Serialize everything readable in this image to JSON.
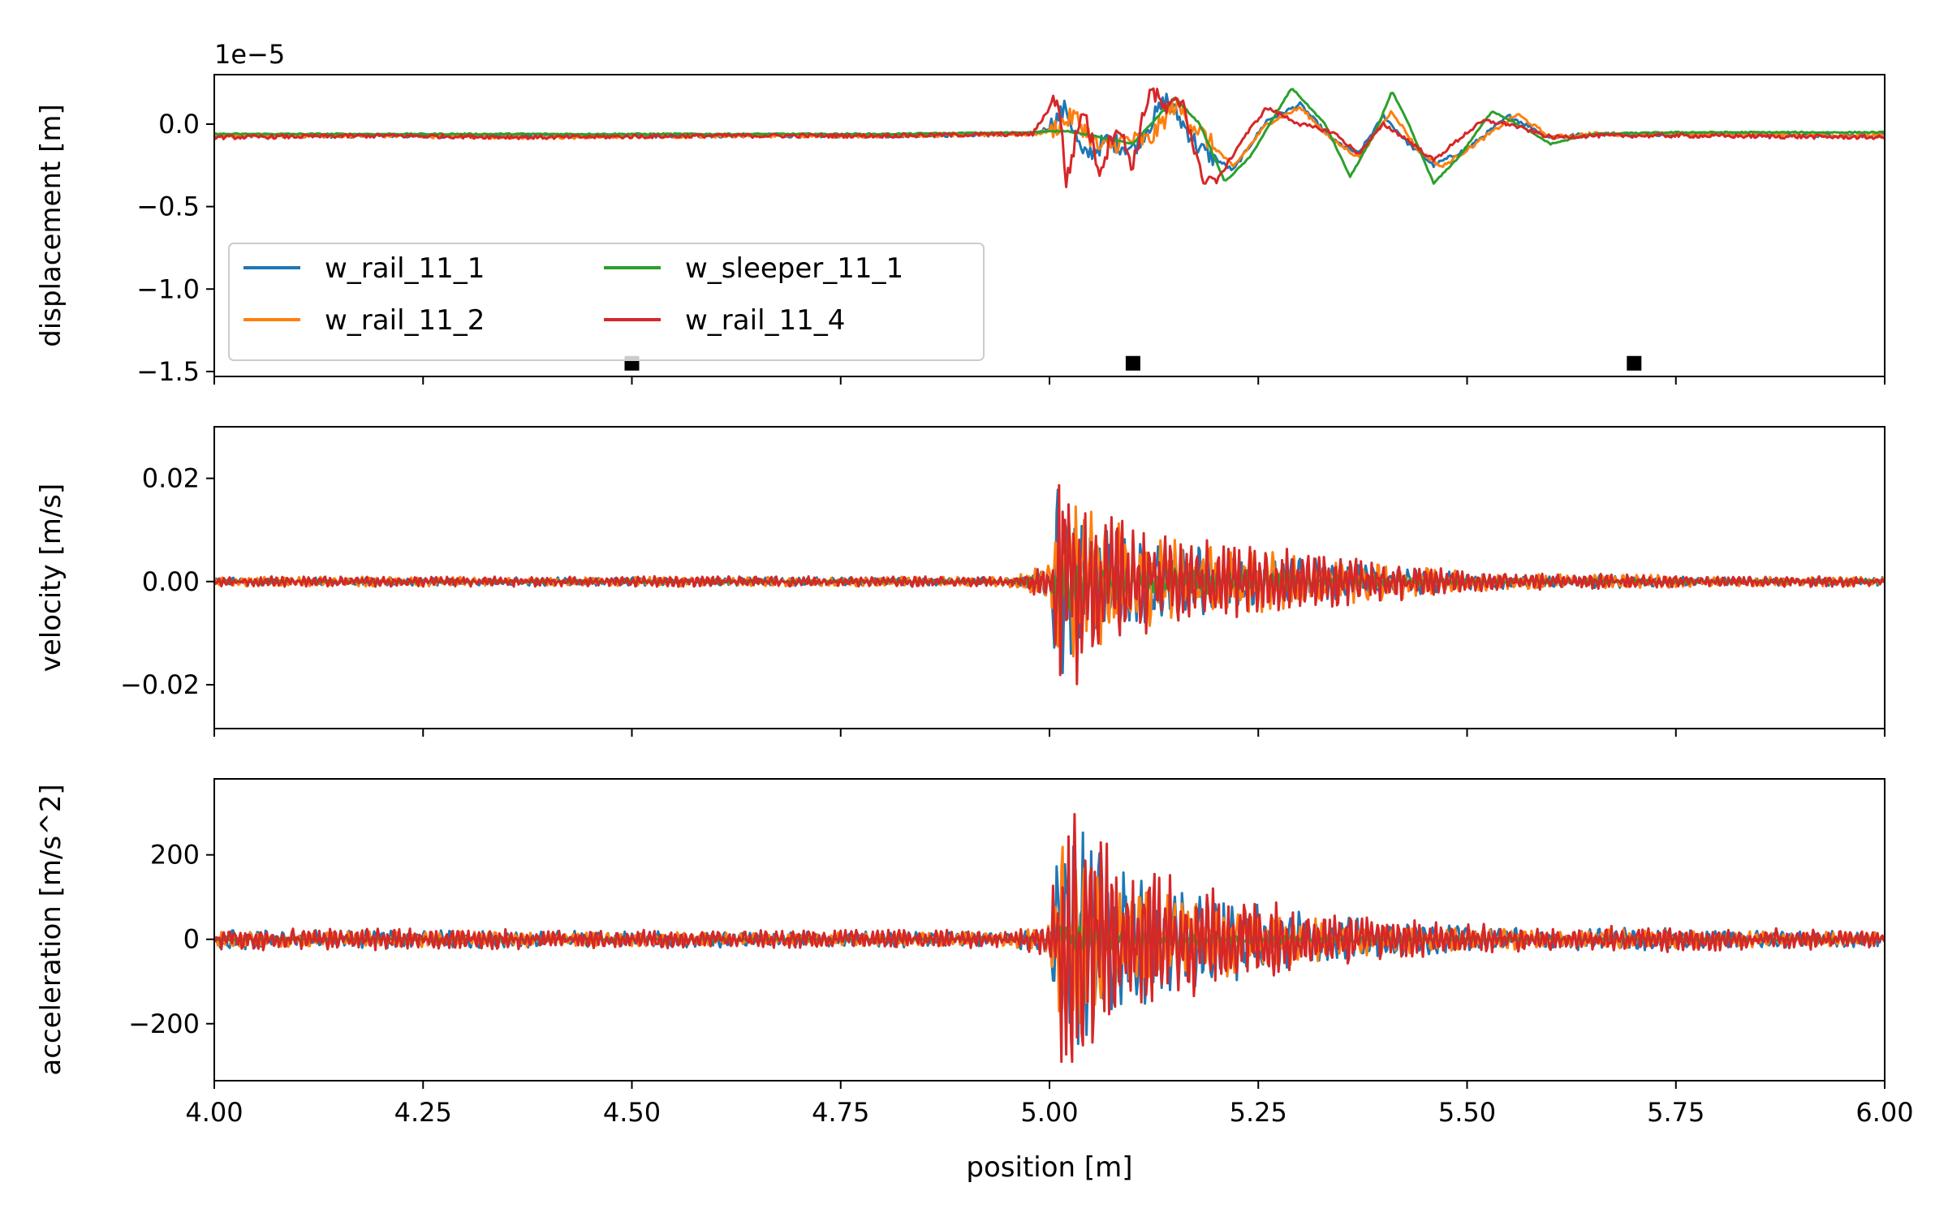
{
  "chart_data": {
    "type": "line",
    "xlabel": "position [m]",
    "xlim": [
      4.0,
      6.0
    ],
    "x_ticks": [
      4.0,
      4.25,
      4.5,
      4.75,
      5.0,
      5.25,
      5.5,
      5.75,
      6.0
    ],
    "x_tick_labels": [
      "4.00",
      "4.25",
      "4.50",
      "4.75",
      "5.00",
      "5.25",
      "5.50",
      "5.75",
      "6.00"
    ],
    "grid": false,
    "colors": {
      "w_rail_11_1": "#1f77b4",
      "w_rail_11_2": "#ff7f0e",
      "w_sleeper_11_1": "#2ca02c",
      "w_rail_11_4": "#d62728"
    },
    "panels": [
      {
        "id": "displacement",
        "ylabel": "displacement [m]",
        "offset_text": "1e−5",
        "scale": 1e-05,
        "ylim": [
          -1.53,
          0.3
        ],
        "y_ticks": [
          0.0,
          -0.5,
          -1.0,
          -1.5
        ],
        "y_tick_labels": [
          "0.0",
          "−0.5",
          "−1.0",
          "−1.5"
        ],
        "legend": {
          "placement": "lower-left",
          "columns": 2,
          "entries": [
            "w_rail_11_1",
            "w_rail_11_2",
            "w_sleeper_11_1",
            "w_rail_11_4"
          ]
        },
        "markers": {
          "x": [
            4.5,
            5.1,
            5.7
          ],
          "y": [
            -1.45,
            -1.45,
            -1.45
          ],
          "color": "#000000",
          "shape": "square"
        },
        "series": [
          {
            "name": "w_rail_11_1",
            "points": [
              [
                4.0,
                -0.07
              ],
              [
                4.2,
                -0.07
              ],
              [
                4.4,
                -0.07
              ],
              [
                4.6,
                -0.07
              ],
              [
                4.8,
                -0.07
              ],
              [
                4.98,
                -0.06
              ],
              [
                5.0,
                -0.02
              ],
              [
                5.02,
                0.1
              ],
              [
                5.04,
                -0.2
              ],
              [
                5.07,
                -0.1
              ],
              [
                5.1,
                -0.15
              ],
              [
                5.14,
                0.15
              ],
              [
                5.18,
                -0.15
              ],
              [
                5.22,
                -0.28
              ],
              [
                5.26,
                0.02
              ],
              [
                5.3,
                0.12
              ],
              [
                5.34,
                -0.1
              ],
              [
                5.37,
                -0.18
              ],
              [
                5.4,
                0.05
              ],
              [
                5.43,
                -0.12
              ],
              [
                5.46,
                -0.25
              ],
              [
                5.5,
                -0.15
              ],
              [
                5.55,
                0.05
              ],
              [
                5.6,
                -0.08
              ],
              [
                5.65,
                -0.06
              ],
              [
                5.75,
                -0.06
              ],
              [
                6.0,
                -0.07
              ]
            ]
          },
          {
            "name": "w_rail_11_2",
            "points": [
              [
                4.0,
                -0.07
              ],
              [
                4.2,
                -0.07
              ],
              [
                4.4,
                -0.08
              ],
              [
                4.6,
                -0.07
              ],
              [
                4.8,
                -0.07
              ],
              [
                4.98,
                -0.06
              ],
              [
                5.0,
                -0.04
              ],
              [
                5.03,
                0.05
              ],
              [
                5.06,
                -0.15
              ],
              [
                5.09,
                -0.1
              ],
              [
                5.12,
                -0.1
              ],
              [
                5.15,
                0.12
              ],
              [
                5.19,
                -0.1
              ],
              [
                5.22,
                -0.26
              ],
              [
                5.26,
                0.0
              ],
              [
                5.3,
                0.1
              ],
              [
                5.34,
                -0.1
              ],
              [
                5.37,
                -0.2
              ],
              [
                5.41,
                0.08
              ],
              [
                5.44,
                -0.15
              ],
              [
                5.47,
                -0.26
              ],
              [
                5.51,
                -0.12
              ],
              [
                5.56,
                0.06
              ],
              [
                5.6,
                -0.08
              ],
              [
                5.65,
                -0.06
              ],
              [
                5.75,
                -0.06
              ],
              [
                6.0,
                -0.07
              ]
            ]
          },
          {
            "name": "w_sleeper_11_1",
            "points": [
              [
                4.0,
                -0.06
              ],
              [
                4.2,
                -0.06
              ],
              [
                4.4,
                -0.06
              ],
              [
                4.6,
                -0.06
              ],
              [
                4.8,
                -0.06
              ],
              [
                4.98,
                -0.05
              ],
              [
                5.02,
                -0.04
              ],
              [
                5.06,
                -0.08
              ],
              [
                5.1,
                -0.12
              ],
              [
                5.15,
                0.16
              ],
              [
                5.18,
                0.0
              ],
              [
                5.21,
                -0.35
              ],
              [
                5.24,
                -0.2
              ],
              [
                5.29,
                0.22
              ],
              [
                5.33,
                0.0
              ],
              [
                5.36,
                -0.32
              ],
              [
                5.39,
                -0.05
              ],
              [
                5.41,
                0.2
              ],
              [
                5.43,
                0.0
              ],
              [
                5.46,
                -0.36
              ],
              [
                5.49,
                -0.2
              ],
              [
                5.53,
                0.08
              ],
              [
                5.56,
                0.0
              ],
              [
                5.6,
                -0.12
              ],
              [
                5.65,
                -0.06
              ],
              [
                5.75,
                -0.05
              ],
              [
                6.0,
                -0.05
              ]
            ]
          },
          {
            "name": "w_rail_11_4",
            "points": [
              [
                4.0,
                -0.08
              ],
              [
                4.2,
                -0.07
              ],
              [
                4.4,
                -0.08
              ],
              [
                4.6,
                -0.07
              ],
              [
                4.8,
                -0.07
              ],
              [
                4.98,
                -0.06
              ],
              [
                5.01,
                0.18
              ],
              [
                5.02,
                -0.35
              ],
              [
                5.04,
                0.1
              ],
              [
                5.06,
                -0.28
              ],
              [
                5.08,
                0.0
              ],
              [
                5.1,
                -0.25
              ],
              [
                5.12,
                0.22
              ],
              [
                5.14,
                0.08
              ],
              [
                5.16,
                0.15
              ],
              [
                5.18,
                -0.3
              ],
              [
                5.2,
                -0.35
              ],
              [
                5.23,
                -0.1
              ],
              [
                5.26,
                0.1
              ],
              [
                5.3,
                0.0
              ],
              [
                5.34,
                -0.05
              ],
              [
                5.37,
                -0.18
              ],
              [
                5.4,
                0.0
              ],
              [
                5.43,
                -0.1
              ],
              [
                5.46,
                -0.22
              ],
              [
                5.5,
                -0.05
              ],
              [
                5.52,
                0.02
              ],
              [
                5.55,
                0.0
              ],
              [
                5.6,
                -0.08
              ],
              [
                5.65,
                -0.07
              ],
              [
                5.75,
                -0.07
              ],
              [
                6.0,
                -0.08
              ]
            ]
          }
        ]
      },
      {
        "id": "velocity",
        "ylabel": "velocity [m/s]",
        "ylim": [
          -0.0285,
          0.03
        ],
        "y_ticks": [
          0.02,
          0.0,
          -0.02
        ],
        "y_tick_labels": [
          "0.02",
          "0.00",
          "−0.02"
        ],
        "envelope": {
          "description_free_values": true,
          "x": [
            4.0,
            4.5,
            4.95,
            5.0,
            5.01,
            5.02,
            5.05,
            5.1,
            5.2,
            5.3,
            5.4,
            5.5,
            5.6,
            5.7,
            5.8,
            6.0
          ],
          "amplitude": [
            0.001,
            0.001,
            0.001,
            0.004,
            0.026,
            0.022,
            0.016,
            0.01,
            0.008,
            0.006,
            0.004,
            0.002,
            0.0015,
            0.0015,
            0.001,
            0.001
          ]
        },
        "series": [
          {
            "name": "w_rail_11_1",
            "peak_max": 0.022,
            "peak_min": -0.021
          },
          {
            "name": "w_rail_11_2",
            "peak_max": 0.025,
            "peak_min": -0.022
          },
          {
            "name": "w_sleeper_11_1",
            "peak_max": 0.008,
            "peak_min": -0.008
          },
          {
            "name": "w_rail_11_4",
            "peak_max": 0.027,
            "peak_min": -0.025
          }
        ]
      },
      {
        "id": "acceleration",
        "ylabel": "acceleration [m/s^2]",
        "ylim": [
          -335,
          380
        ],
        "y_ticks": [
          200,
          0,
          -200
        ],
        "y_tick_labels": [
          "200",
          "0",
          "−200"
        ],
        "envelope": {
          "x": [
            4.0,
            4.5,
            4.95,
            5.0,
            5.01,
            5.03,
            5.06,
            5.1,
            5.2,
            5.3,
            5.4,
            5.5,
            5.6,
            5.7,
            5.8,
            6.0
          ],
          "amplitude": [
            25,
            20,
            20,
            40,
            290,
            310,
            230,
            170,
            110,
            70,
            45,
            35,
            25,
            30,
            25,
            20
          ]
        },
        "series": [
          {
            "name": "w_rail_11_1",
            "peak_max": 290,
            "peak_min": -300
          },
          {
            "name": "w_rail_11_2",
            "peak_max": 250,
            "peak_min": -260
          },
          {
            "name": "w_sleeper_11_1",
            "peak_max": 40,
            "peak_min": -40
          },
          {
            "name": "w_rail_11_4",
            "peak_max": 350,
            "peak_min": -290
          }
        ]
      }
    ]
  }
}
